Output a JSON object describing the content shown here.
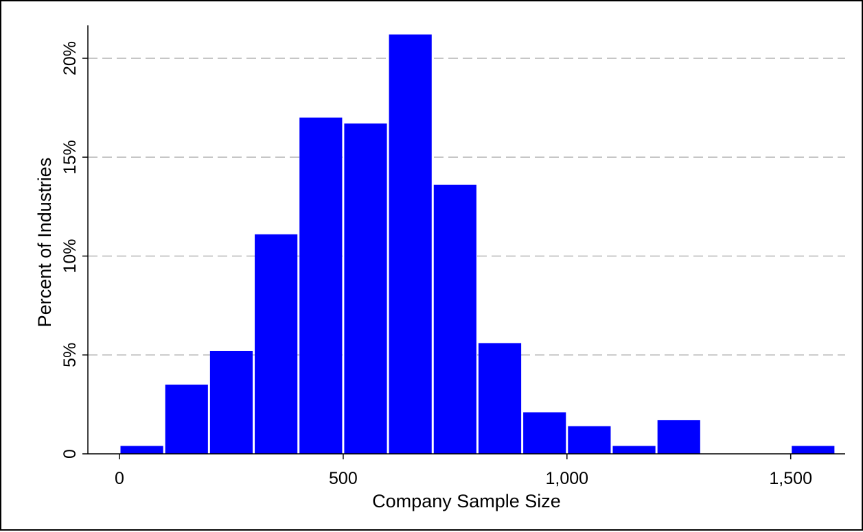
{
  "chart_data": {
    "type": "bar",
    "title": "",
    "xlabel": "Company Sample Size",
    "ylabel": "Percent of Industries",
    "bin_width": 100,
    "bins": [
      {
        "start": 0,
        "end": 100,
        "value": 0.4
      },
      {
        "start": 100,
        "end": 200,
        "value": 3.5
      },
      {
        "start": 200,
        "end": 300,
        "value": 5.2
      },
      {
        "start": 300,
        "end": 400,
        "value": 11.1
      },
      {
        "start": 400,
        "end": 500,
        "value": 17.0
      },
      {
        "start": 500,
        "end": 600,
        "value": 16.7
      },
      {
        "start": 600,
        "end": 700,
        "value": 21.2
      },
      {
        "start": 700,
        "end": 800,
        "value": 13.6
      },
      {
        "start": 800,
        "end": 900,
        "value": 5.6
      },
      {
        "start": 900,
        "end": 1000,
        "value": 2.1
      },
      {
        "start": 1000,
        "end": 1100,
        "value": 1.4
      },
      {
        "start": 1100,
        "end": 1200,
        "value": 0.4
      },
      {
        "start": 1200,
        "end": 1300,
        "value": 1.7
      },
      {
        "start": 1500,
        "end": 1600,
        "value": 0.4
      }
    ],
    "xlim": [
      -70,
      1620
    ],
    "ylim": [
      0,
      21.8
    ],
    "xticks": [
      {
        "value": 0,
        "label": "0"
      },
      {
        "value": 500,
        "label": "500"
      },
      {
        "value": 1000,
        "label": "1,000"
      },
      {
        "value": 1500,
        "label": "1,500"
      }
    ],
    "yticks": [
      {
        "value": 0,
        "label": "0"
      },
      {
        "value": 5,
        "label": "5%"
      },
      {
        "value": 10,
        "label": "10%"
      },
      {
        "value": 15,
        "label": "15%"
      },
      {
        "value": 20,
        "label": "20%"
      }
    ],
    "grid": {
      "y": true,
      "x": false,
      "style": "dashed"
    },
    "legend": "none",
    "colors": {
      "bar": "#0000ff",
      "bar_edge": "#ffffff",
      "grid": "#b4b4b4",
      "axis": "#000000",
      "text": "#000000",
      "frame": "#000000"
    }
  }
}
